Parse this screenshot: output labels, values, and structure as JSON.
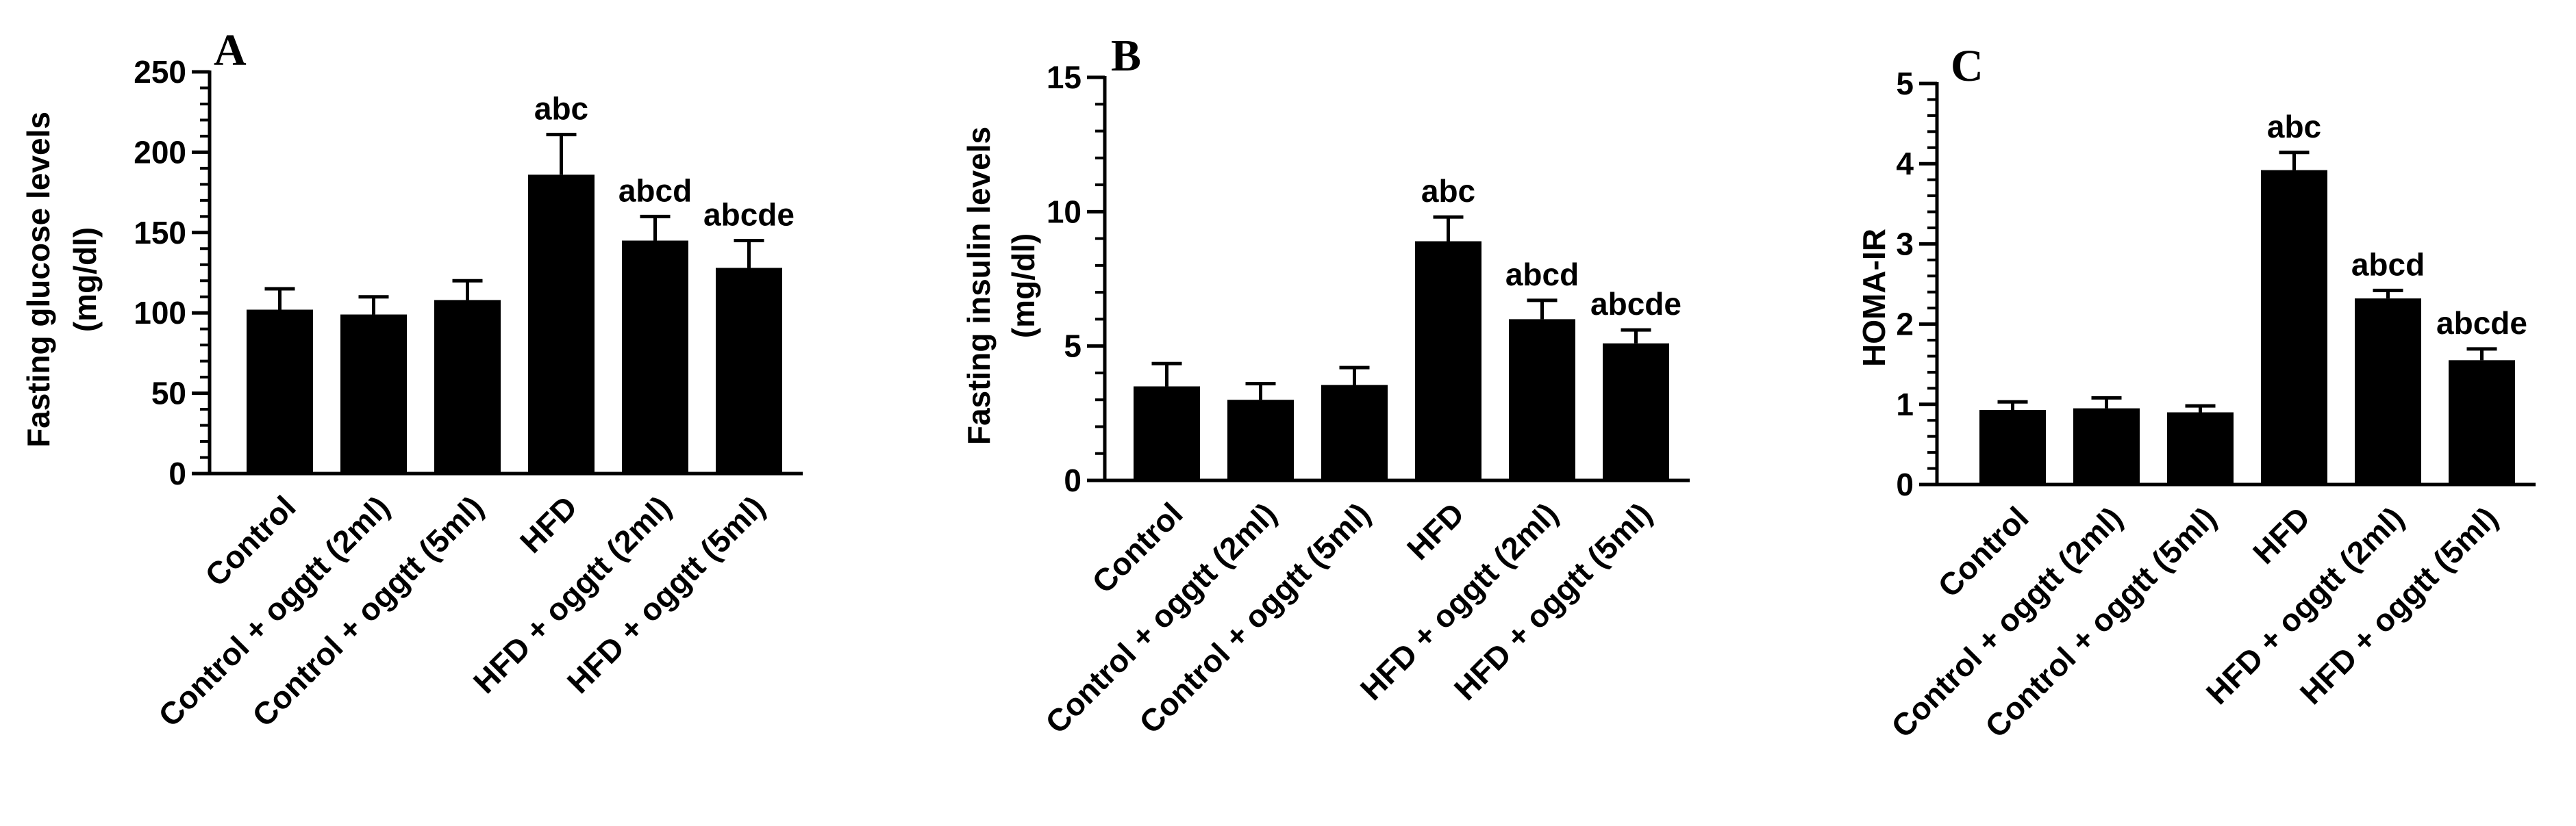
{
  "chart_data": [
    {
      "type": "bar",
      "panel_label": "A",
      "ylabel": "Fasting glucose levels",
      "ylabel_unit": "(mg/dl)",
      "categories": [
        "Control",
        "Control + oggtt (2ml)",
        "Control + oggtt (5ml)",
        "HFD",
        "HFD + oggtt (2ml)",
        "HFD + oggtt (5ml)"
      ],
      "values": [
        102,
        99,
        108,
        186,
        145,
        128
      ],
      "errors": [
        13,
        11,
        12,
        25,
        15,
        17
      ],
      "annotations": [
        "",
        "",
        "",
        "abc",
        "abcd",
        "abcde"
      ],
      "ylim": [
        0,
        250
      ],
      "yticks": [
        0,
        50,
        100,
        150,
        200,
        250
      ],
      "ytick_labels": [
        "0",
        "50",
        "100",
        "150",
        "200",
        "250"
      ],
      "minor_ticks_per_major": 5,
      "grid": false,
      "bar_color": "#000000"
    },
    {
      "type": "bar",
      "panel_label": "B",
      "ylabel": "Fasting insulin levels",
      "ylabel_unit": "(mg/dl)",
      "categories": [
        "Control",
        "Control + oggtt (2ml)",
        "Control + oggtt (5ml)",
        "HFD",
        "HFD + oggtt (2ml)",
        "HFD + oggtt (5ml)"
      ],
      "values": [
        3.5,
        3.0,
        3.55,
        8.9,
        6.0,
        5.1
      ],
      "errors": [
        0.85,
        0.6,
        0.65,
        0.9,
        0.7,
        0.5
      ],
      "annotations": [
        "",
        "",
        "",
        "abc",
        "abcd",
        "abcde"
      ],
      "ylim": [
        0,
        15
      ],
      "yticks": [
        0,
        5,
        10,
        15
      ],
      "ytick_labels": [
        "0",
        "5",
        "10",
        "15"
      ],
      "minor_ticks_per_major": 5,
      "grid": false,
      "bar_color": "#000000"
    },
    {
      "type": "bar",
      "panel_label": "C",
      "ylabel": "HOMA-IR",
      "ylabel_unit": "",
      "categories": [
        "Control",
        "Control + oggtt (2ml)",
        "Control + oggtt (5ml)",
        "HFD",
        "HFD + oggtt (2ml)",
        "HFD + oggtt (5ml)"
      ],
      "values": [
        0.93,
        0.95,
        0.9,
        3.92,
        2.32,
        1.55
      ],
      "errors": [
        0.1,
        0.13,
        0.08,
        0.22,
        0.1,
        0.14
      ],
      "annotations": [
        "",
        "",
        "",
        "abc",
        "abcd",
        "abcde"
      ],
      "ylim": [
        0,
        5
      ],
      "yticks": [
        0,
        1,
        2,
        3,
        4,
        5
      ],
      "ytick_labels": [
        "0",
        "1",
        "2",
        "3",
        "4",
        "5"
      ],
      "minor_ticks_per_major": 5,
      "grid": false,
      "bar_color": "#000000"
    }
  ]
}
